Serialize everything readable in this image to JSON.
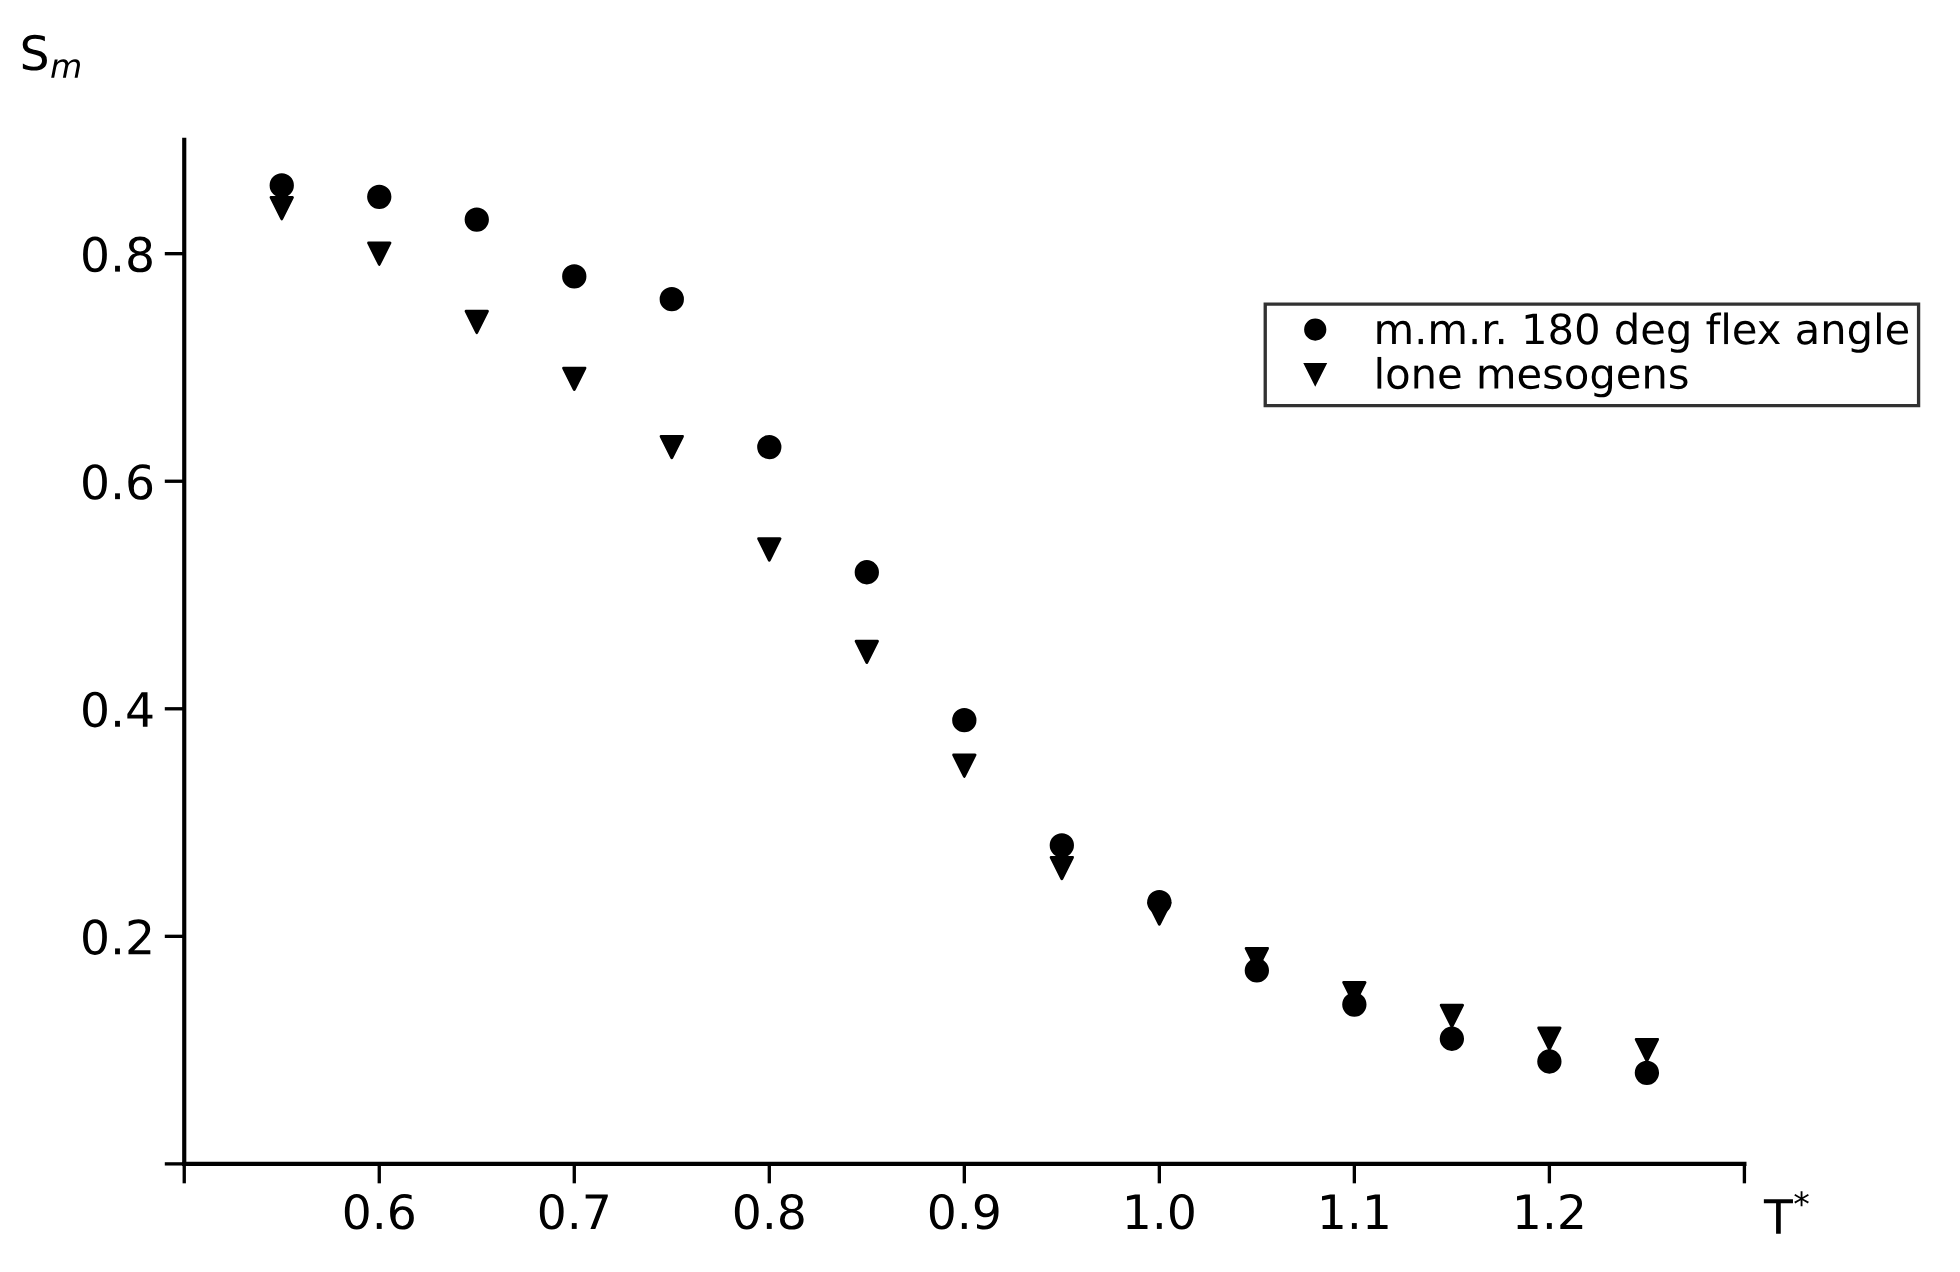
{
  "chart_data": {
    "type": "scatter",
    "xlabel": "T$^{*}$",
    "ylabel": "S$_{m}$",
    "x": [
      0.55,
      0.6,
      0.65,
      0.7,
      0.75,
      0.8,
      0.85,
      0.9,
      0.95,
      1.0,
      1.05,
      1.1,
      1.15,
      1.2,
      1.25
    ],
    "series": [
      {
        "name": "m.m.r. 180 deg flex angle",
        "color": "#000000",
        "marker": "circle",
        "values": [
          0.86,
          0.85,
          0.83,
          0.78,
          0.76,
          0.63,
          0.52,
          0.39,
          0.28,
          0.23,
          0.17,
          0.14,
          0.11,
          0.09,
          0.08
        ]
      },
      {
        "name": "lone mesogens",
        "color": "#000000",
        "marker": "triangle",
        "values": [
          0.84,
          0.8,
          0.74,
          0.69,
          0.63,
          0.54,
          0.45,
          0.35,
          0.26,
          0.22,
          0.18,
          0.15,
          0.13,
          0.11,
          0.1
        ]
      }
    ],
    "xlim": [
      0.5,
      1.3
    ],
    "ylim": [
      0,
      0.9
    ],
    "xticks": [
      {
        "value": 0.5,
        "label": null
      },
      0.6,
      0.7,
      0.8,
      0.9,
      {
        "value": 1.0,
        "label": "1.0"
      },
      1.1,
      1.2,
      {
        "value": 1.3,
        "label": null
      }
    ],
    "yticks": [
      {
        "value": 0,
        "label": null
      },
      0.2,
      0.4,
      0.6,
      0.8
    ],
    "grid": false,
    "legend": "top right"
  }
}
